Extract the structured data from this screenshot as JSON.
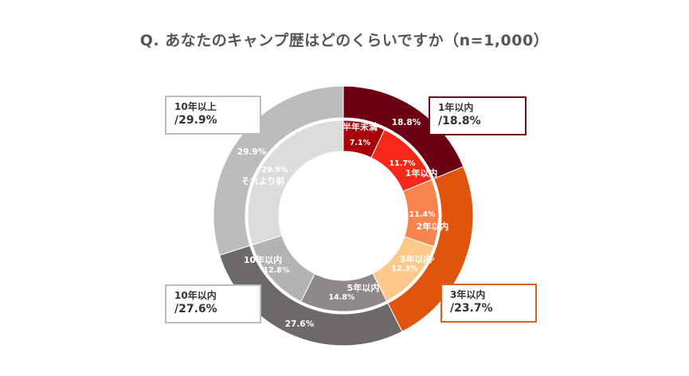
{
  "title": "Q. あなたのキャンプ歴はどのくらいですか（n=1,000）",
  "chart_data": {
    "type": "pie",
    "variant": "nested-donut",
    "title": "Q. あなたのキャンプ歴はどのくらいですか（n=1,000）",
    "outer_ring": [
      {
        "label": "1年以内",
        "value": 18.8,
        "value_label": "18.8%",
        "color": "#6b0013"
      },
      {
        "label": "3年以内",
        "value": 23.7,
        "value_label": "23.7%",
        "color": "#e0540c"
      },
      {
        "label": "10年以内",
        "value": 27.6,
        "value_label": "27.6%",
        "color": "#6d6969"
      },
      {
        "label": "10年以上",
        "value": 29.9,
        "value_label": "29.9%",
        "color": "#bcbcbc"
      }
    ],
    "inner_ring": [
      {
        "label": "半年未満",
        "value": 7.1,
        "value_label": "7.1%",
        "color": "#a8000b"
      },
      {
        "label": "1年以内",
        "value": 11.7,
        "value_label": "11.7%",
        "color": "#f5281a"
      },
      {
        "label": "2年以内",
        "value": 11.4,
        "value_label": "11.4%",
        "color": "#f7844f"
      },
      {
        "label": "3年以内",
        "value": 12.3,
        "value_label": "12.3%",
        "color": "#fcc98a"
      },
      {
        "label": "5年以内",
        "value": 14.8,
        "value_label": "14.8%",
        "color": "#8d8989"
      },
      {
        "label": "10年以内",
        "value": 12.8,
        "value_label": "12.8%",
        "color": "#b3b3b3"
      },
      {
        "label": "それより前",
        "value": 29.9,
        "value_label": "29.9%",
        "color": "#dcdcdc"
      }
    ],
    "callouts": [
      {
        "label": "10年以上",
        "value": "/29.9%",
        "border_color": "#bdbdbd"
      },
      {
        "label": "1年以内",
        "value": "/18.8%",
        "border_color": "#6e0e1a"
      },
      {
        "label": "10年以内",
        "value": "/27.6%",
        "border_color": "#bdbdbd"
      },
      {
        "label": "3年以内",
        "value": "/23.7%",
        "border_color": "#e0611c"
      }
    ]
  }
}
